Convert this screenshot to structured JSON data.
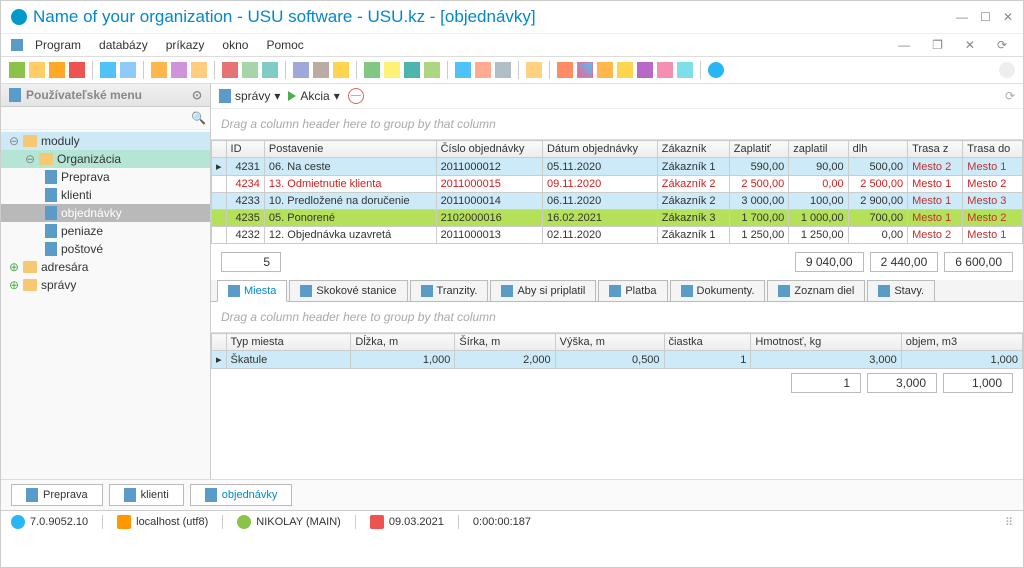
{
  "window": {
    "title": "Name of your organization - USU software - USU.kz - [objednávky]"
  },
  "menu": {
    "items": [
      "Program",
      "databázy",
      "príkazy",
      "okno",
      "Pomoc"
    ]
  },
  "subtoolbar": {
    "spravy": "správy",
    "akcia": "Akcia"
  },
  "sidebar": {
    "title": "Používateľské menu",
    "tree": {
      "moduly": "moduly",
      "organizacia": "Organizácia",
      "preprava": "Preprava",
      "klienti": "klienti",
      "objednavky": "objednávky",
      "peniaze": "peniaze",
      "postove": "poštové",
      "adresara": "adresára",
      "spravy": "správy"
    }
  },
  "grid": {
    "group_hint": "Drag a column header here to group by that column",
    "cols": [
      "ID",
      "Postavenie",
      "Číslo objednávky",
      "Dátum objednávky",
      "Zákazník",
      "Zaplatiť",
      "zaplatil",
      "dlh",
      "Trasa z",
      "Trasa do"
    ],
    "rows": [
      {
        "id": "4231",
        "post": "06. Na ceste",
        "cislo": "2011000012",
        "datum": "05.11.2020",
        "zak": "Zákazník 1",
        "zap": "590,00",
        "zapl": "90,00",
        "dlh": "500,00",
        "tz": "Mesto 2",
        "td": "Mesto 1",
        "cls": "row-cyan"
      },
      {
        "id": "4234",
        "post": "13. Odmietnutie klienta",
        "cislo": "2011000015",
        "datum": "09.11.2020",
        "zak": "Zákazník 2",
        "zap": "2 500,00",
        "zapl": "0,00",
        "dlh": "2 500,00",
        "tz": "Mesto 1",
        "td": "Mesto 2",
        "cls": "row-red"
      },
      {
        "id": "4233",
        "post": "10. Predložené na doručenie",
        "cislo": "2011000014",
        "datum": "06.11.2020",
        "zak": "Zákazník 2",
        "zap": "3 000,00",
        "zapl": "100,00",
        "dlh": "2 900,00",
        "tz": "Mesto 1",
        "td": "Mesto 3",
        "cls": "row-blue"
      },
      {
        "id": "4235",
        "post": "05. Ponorené",
        "cislo": "2102000016",
        "datum": "16.02.2021",
        "zak": "Zákazník 3",
        "zap": "1 700,00",
        "zapl": "1 000,00",
        "dlh": "700,00",
        "tz": "Mesto 1",
        "td": "Mesto 2",
        "cls": "row-green"
      },
      {
        "id": "4232",
        "post": "12. Objednávka uzavretá",
        "cislo": "2011000013",
        "datum": "02.11.2020",
        "zak": "Zákazník 1",
        "zap": "1 250,00",
        "zapl": "1 250,00",
        "dlh": "0,00",
        "tz": "Mesto 2",
        "td": "Mesto 1",
        "cls": ""
      }
    ],
    "totals": {
      "count": "5",
      "zap": "9 040,00",
      "zapl": "2 440,00",
      "dlh": "6 600,00"
    }
  },
  "detail_tabs": [
    "Miesta",
    "Skokové stanice",
    "Tranzity.",
    "Aby si priplatil",
    "Platba",
    "Dokumenty.",
    "Zoznam diel",
    "Stavy."
  ],
  "detail": {
    "group_hint": "Drag a column header here to group by that column",
    "cols": [
      "Typ miesta",
      "Dĺžka, m",
      "Šírka, m",
      "Výška, m",
      "čiastka",
      "Hmotnosť, kg",
      "objem, m3"
    ],
    "row": {
      "typ": "Škatule",
      "dlzka": "1,000",
      "sirka": "2,000",
      "vyska": "0,500",
      "ciastka": "1",
      "hmot": "3,000",
      "objem": "1,000"
    },
    "totals": {
      "ciastka": "1",
      "hmot": "3,000",
      "objem": "1,000"
    }
  },
  "bottom_tabs": [
    "Preprava",
    "klienti",
    "objednávky"
  ],
  "status": {
    "version": "7.0.9052.10",
    "host": "localhost (utf8)",
    "user": "NIKOLAY (MAIN)",
    "date": "09.03.2021",
    "time": "0:00:00:187"
  }
}
